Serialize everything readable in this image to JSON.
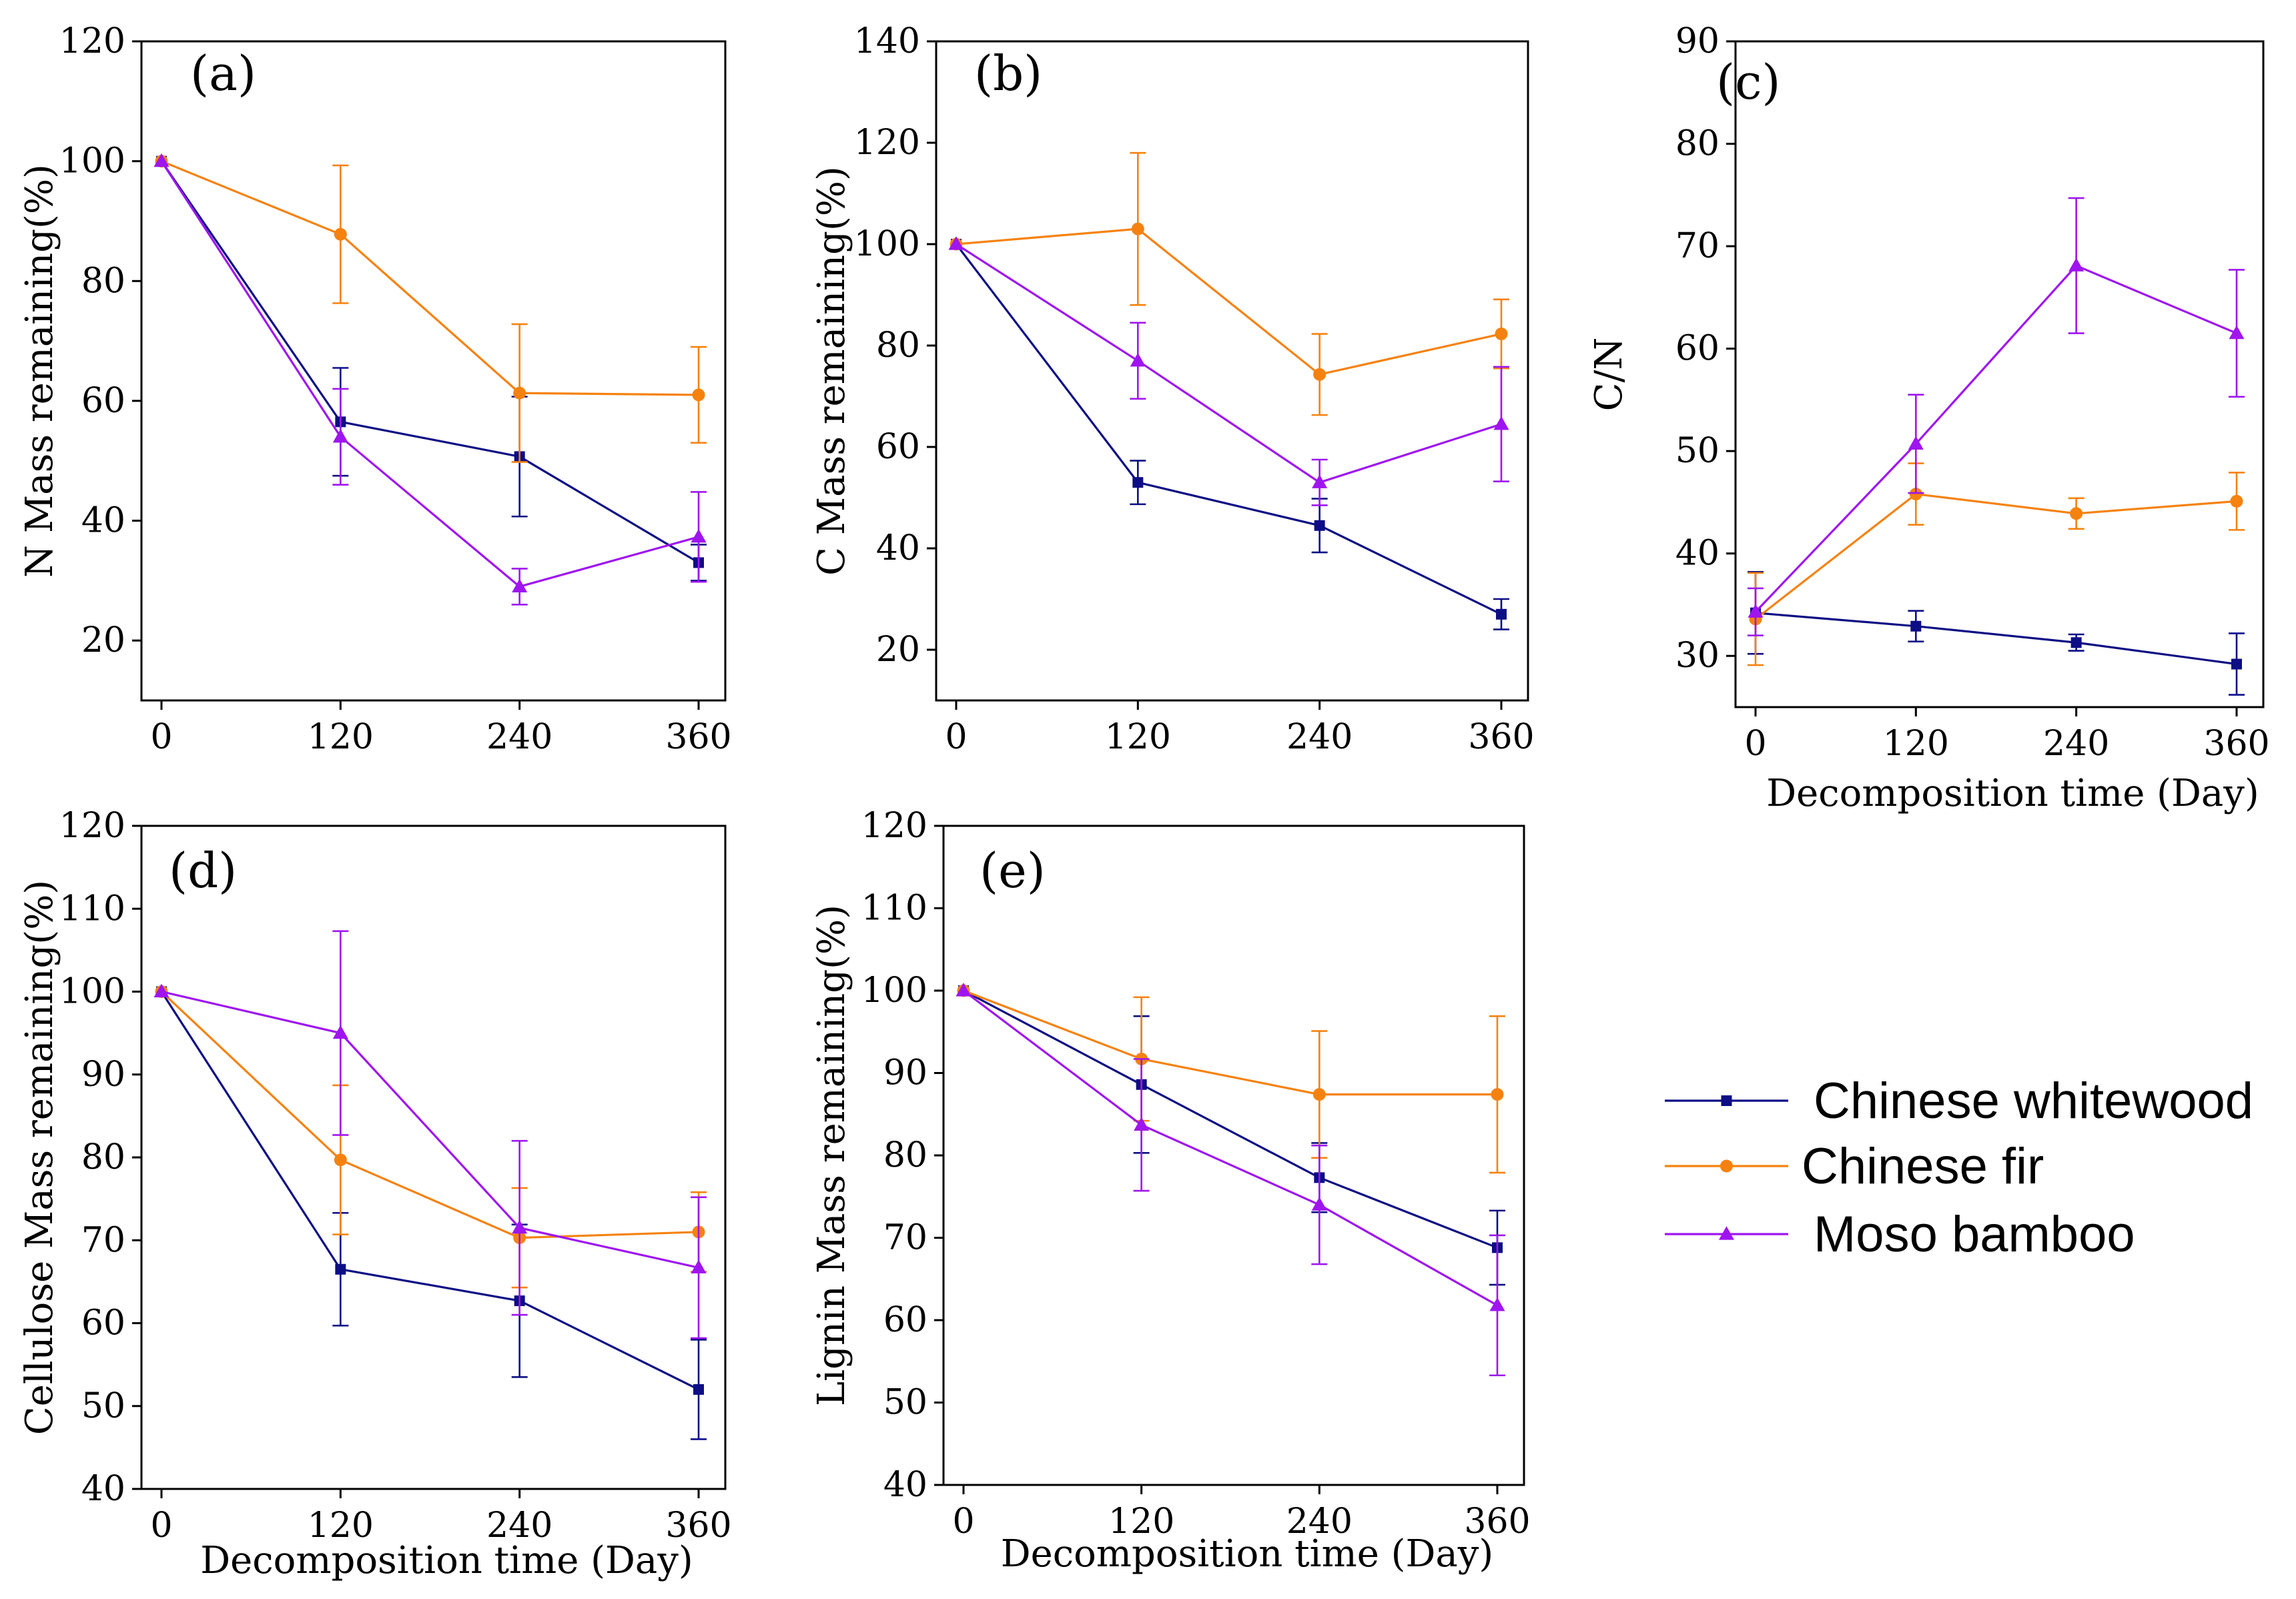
{
  "colors": {
    "Chinese whitewood": "#0d0d85",
    "Chinese fir": "#f5820f",
    "Moso bamboo": "#9f15ef",
    "axis": "#000000"
  },
  "legend": {
    "entries": [
      {
        "name": "Chinese whitewood",
        "marker": "square"
      },
      {
        "name": "Chinese fir",
        "marker": "circle"
      },
      {
        "name": "Moso bamboo",
        "marker": "triangle"
      }
    ]
  },
  "chart_data": [
    {
      "id": "a",
      "label": "(a)",
      "type": "line",
      "ylabel": "N Mass remaining(%)",
      "xlabel": "",
      "x": [
        0,
        120,
        240,
        360
      ],
      "xticks": [
        "0",
        "120",
        "240",
        "360"
      ],
      "ylim": [
        10,
        120
      ],
      "yticks": [
        20,
        40,
        60,
        80,
        100,
        120
      ],
      "series": [
        {
          "name": "Chinese whitewood",
          "values": [
            100,
            56.5,
            50.7,
            33
          ],
          "err": [
            0,
            9,
            10,
            3
          ]
        },
        {
          "name": "Chinese fir",
          "values": [
            100,
            87.8,
            61.3,
            61
          ],
          "err": [
            0,
            11.5,
            11.5,
            8
          ]
        },
        {
          "name": "Moso bamboo",
          "values": [
            100,
            54,
            29,
            37.3
          ],
          "err": [
            0,
            8,
            3,
            7.5
          ]
        }
      ]
    },
    {
      "id": "b",
      "label": "(b)",
      "type": "line",
      "ylabel": "C Mass remaining(%)",
      "xlabel": "",
      "x": [
        0,
        120,
        240,
        360
      ],
      "xticks": [
        "0",
        "120",
        "240",
        "360"
      ],
      "ylim": [
        10,
        140
      ],
      "yticks": [
        20,
        40,
        60,
        80,
        100,
        120,
        140
      ],
      "series": [
        {
          "name": "Chinese whitewood",
          "values": [
            100,
            53,
            44.5,
            27
          ],
          "err": [
            0,
            4.3,
            5.3,
            3
          ]
        },
        {
          "name": "Chinese fir",
          "values": [
            100,
            103,
            74.3,
            82.3
          ],
          "err": [
            0,
            15,
            8,
            6.8
          ]
        },
        {
          "name": "Moso bamboo",
          "values": [
            100,
            77,
            53,
            64.5
          ],
          "err": [
            0,
            7.5,
            4.5,
            11.3
          ]
        }
      ]
    },
    {
      "id": "c",
      "label": "(c)",
      "type": "line",
      "ylabel": "C/N",
      "xlabel": "Decomposition time (Day)",
      "x": [
        0,
        120,
        240,
        360
      ],
      "xticks": [
        "0",
        "120",
        "240",
        "360"
      ],
      "ylim": [
        25,
        90
      ],
      "yticks": [
        30,
        40,
        50,
        60,
        70,
        80,
        90
      ],
      "series": [
        {
          "name": "Chinese whitewood",
          "values": [
            34.2,
            32.9,
            31.3,
            29.2
          ],
          "err": [
            4,
            1.5,
            0.8,
            3
          ]
        },
        {
          "name": "Chinese fir",
          "values": [
            33.6,
            45.8,
            43.9,
            45.1
          ],
          "err": [
            4.5,
            3,
            1.5,
            2.8
          ]
        },
        {
          "name": "Moso bamboo",
          "values": [
            34.3,
            50.7,
            68.1,
            61.5
          ],
          "err": [
            2.3,
            4.8,
            6.6,
            6.2
          ]
        }
      ]
    },
    {
      "id": "d",
      "label": "(d)",
      "type": "line",
      "ylabel": "Cellulose Mass remaining(%)",
      "xlabel": "Decomposition time (Day)",
      "x": [
        0,
        120,
        240,
        360
      ],
      "xticks": [
        "0",
        "120",
        "240",
        "360"
      ],
      "ylim": [
        40,
        120
      ],
      "yticks": [
        40,
        50,
        60,
        70,
        80,
        90,
        100,
        110,
        120
      ],
      "series": [
        {
          "name": "Chinese whitewood",
          "values": [
            100,
            66.5,
            62.7,
            52
          ],
          "err": [
            0,
            6.8,
            9.2,
            6
          ]
        },
        {
          "name": "Chinese fir",
          "values": [
            100,
            79.7,
            70.3,
            71
          ],
          "err": [
            0,
            9,
            6,
            4.8
          ]
        },
        {
          "name": "Moso bamboo",
          "values": [
            100,
            95,
            71.5,
            66.7
          ],
          "err": [
            0,
            12.3,
            10.5,
            8.5
          ]
        }
      ]
    },
    {
      "id": "e",
      "label": "(e)",
      "type": "line",
      "ylabel": "Lignin Mass remaining(%)",
      "xlabel": "Decomposition time (Day)",
      "x": [
        0,
        120,
        240,
        360
      ],
      "xticks": [
        "0",
        "120",
        "240",
        "360"
      ],
      "ylim": [
        40,
        120
      ],
      "yticks": [
        40,
        50,
        60,
        70,
        80,
        90,
        100,
        110,
        120
      ],
      "series": [
        {
          "name": "Chinese whitewood",
          "values": [
            100,
            88.6,
            77.3,
            68.8
          ],
          "err": [
            0,
            8.3,
            4.2,
            4.5
          ]
        },
        {
          "name": "Chinese fir",
          "values": [
            100,
            91.7,
            87.4,
            87.4
          ],
          "err": [
            0,
            7.5,
            7.7,
            9.5
          ]
        },
        {
          "name": "Moso bamboo",
          "values": [
            100,
            83.7,
            74,
            61.8
          ],
          "err": [
            0,
            8,
            7.2,
            8.5
          ]
        }
      ]
    }
  ]
}
